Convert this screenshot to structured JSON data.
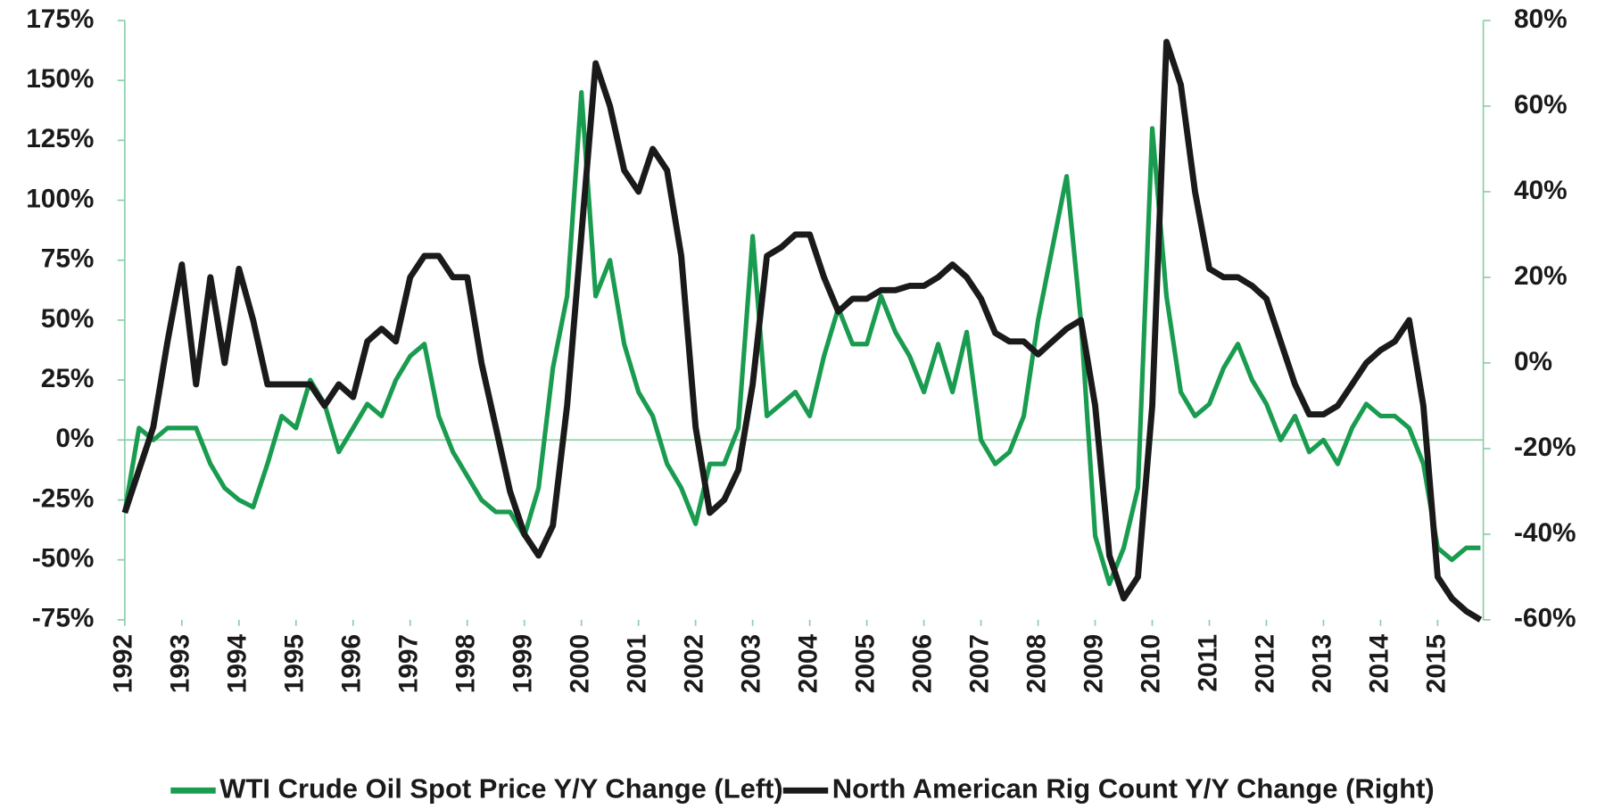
{
  "chart_data": {
    "type": "line",
    "x": [
      1992,
      1992.25,
      1992.5,
      1992.75,
      1993,
      1993.25,
      1993.5,
      1993.75,
      1994,
      1994.25,
      1994.5,
      1994.75,
      1995,
      1995.25,
      1995.5,
      1995.75,
      1996,
      1996.25,
      1996.5,
      1996.75,
      1997,
      1997.25,
      1997.5,
      1997.75,
      1998,
      1998.25,
      1998.5,
      1998.75,
      1999,
      1999.25,
      1999.5,
      1999.75,
      2000,
      2000.25,
      2000.5,
      2000.75,
      2001,
      2001.25,
      2001.5,
      2001.75,
      2002,
      2002.25,
      2002.5,
      2002.75,
      2003,
      2003.25,
      2003.5,
      2003.75,
      2004,
      2004.25,
      2004.5,
      2004.75,
      2005,
      2005.25,
      2005.5,
      2005.75,
      2006,
      2006.25,
      2006.5,
      2006.75,
      2007,
      2007.25,
      2007.5,
      2007.75,
      2008,
      2008.25,
      2008.5,
      2008.75,
      2009,
      2009.25,
      2009.5,
      2009.75,
      2010,
      2010.25,
      2010.5,
      2010.75,
      2011,
      2011.25,
      2011.5,
      2011.75,
      2012,
      2012.25,
      2012.5,
      2012.75,
      2013,
      2013.25,
      2013.5,
      2013.75,
      2014,
      2014.25,
      2014.5,
      2014.75,
      2015,
      2015.25,
      2015.5,
      2015.75
    ],
    "series": [
      {
        "name": "WTI Crude Oil Spot Price Y/Y Change (Left)",
        "color": "#1a9c50",
        "axis": "y",
        "values": [
          -30,
          5,
          0,
          5,
          5,
          5,
          -10,
          -20,
          -25,
          -28,
          -10,
          10,
          5,
          25,
          15,
          -5,
          5,
          15,
          10,
          25,
          35,
          40,
          10,
          -5,
          -15,
          -25,
          -30,
          -30,
          -40,
          -20,
          30,
          60,
          145,
          60,
          75,
          40,
          20,
          10,
          -10,
          -20,
          -35,
          -10,
          -10,
          5,
          85,
          10,
          15,
          20,
          10,
          35,
          55,
          40,
          40,
          60,
          45,
          35,
          20,
          40,
          20,
          45,
          0,
          -10,
          -5,
          10,
          50,
          80,
          110,
          50,
          -40,
          -60,
          -45,
          -20,
          130,
          60,
          20,
          10,
          15,
          30,
          40,
          25,
          15,
          0,
          10,
          -5,
          0,
          -10,
          5,
          15,
          10,
          10,
          5,
          -10,
          -45,
          -50,
          -45,
          -45
        ]
      },
      {
        "name": "North American Rig Count Y/Y Change (Right)",
        "color": "#1a1a1a",
        "axis": "y2",
        "values": [
          -35,
          -25,
          -15,
          5,
          23,
          -5,
          20,
          0,
          22,
          10,
          -5,
          -5,
          -5,
          -5,
          -10,
          -5,
          -8,
          5,
          8,
          5,
          20,
          25,
          25,
          20,
          20,
          0,
          -15,
          -30,
          -40,
          -45,
          -38,
          -10,
          30,
          70,
          60,
          45,
          40,
          50,
          45,
          25,
          -15,
          -35,
          -32,
          -25,
          -5,
          25,
          27,
          30,
          30,
          20,
          12,
          15,
          15,
          17,
          17,
          18,
          18,
          20,
          23,
          20,
          15,
          7,
          5,
          5,
          2,
          5,
          8,
          10,
          -10,
          -45,
          -55,
          -50,
          -10,
          75,
          65,
          40,
          22,
          20,
          20,
          18,
          15,
          5,
          -5,
          -12,
          -12,
          -10,
          -5,
          0,
          3,
          5,
          10,
          -10,
          -50,
          -55,
          -58,
          -60
        ]
      }
    ],
    "xlim": [
      1992,
      2015.8
    ],
    "xticks": [
      1992,
      1993,
      1994,
      1995,
      1996,
      1997,
      1998,
      1999,
      2000,
      2001,
      2002,
      2003,
      2004,
      2005,
      2006,
      2007,
      2008,
      2009,
      2010,
      2011,
      2012,
      2013,
      2014,
      2015
    ],
    "ylim": [
      -75,
      175
    ],
    "yticks": [
      {
        "value": -75,
        "label": "-75%"
      },
      {
        "value": -50,
        "label": "-50%"
      },
      {
        "value": -25,
        "label": "-25%"
      },
      {
        "value": 0,
        "label": "0%"
      },
      {
        "value": 25,
        "label": "25%"
      },
      {
        "value": 50,
        "label": "50%"
      },
      {
        "value": 75,
        "label": "75%"
      },
      {
        "value": 100,
        "label": "100%"
      },
      {
        "value": 125,
        "label": "125%"
      },
      {
        "value": 150,
        "label": "150%"
      },
      {
        "value": 175,
        "label": "175%"
      }
    ],
    "y2lim": [
      -60,
      80
    ],
    "y2ticks": [
      {
        "value": -60,
        "label": "-60%"
      },
      {
        "value": -40,
        "label": "-40%"
      },
      {
        "value": -20,
        "label": "-20%"
      },
      {
        "value": 0,
        "label": "0%"
      },
      {
        "value": 20,
        "label": "20%"
      },
      {
        "value": 40,
        "label": "40%"
      },
      {
        "value": 60,
        "label": "60%"
      },
      {
        "value": 80,
        "label": "80%"
      }
    ],
    "axis_color": "#8fd0a8",
    "legend": "bottom"
  }
}
